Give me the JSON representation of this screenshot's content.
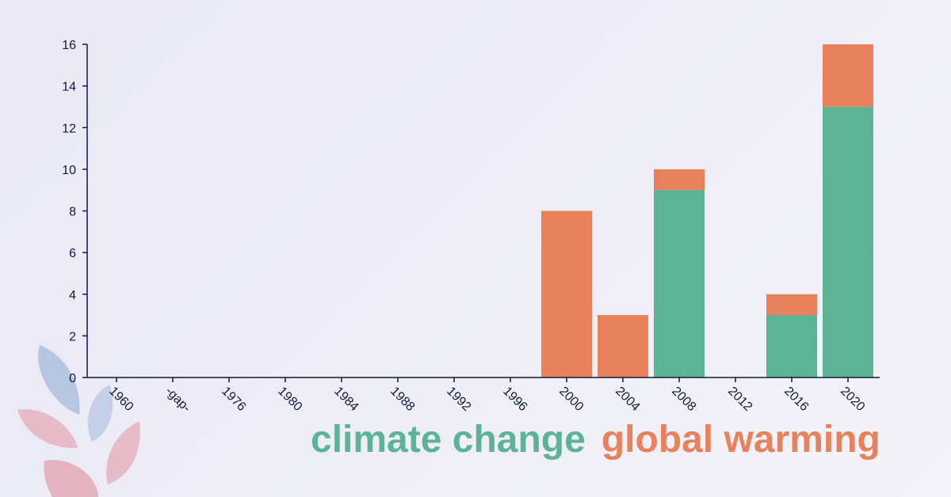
{
  "chart_data": {
    "type": "bar",
    "stacked": true,
    "categories": [
      "1960",
      "-gap-",
      "1976",
      "1980",
      "1984",
      "1988",
      "1992",
      "1996",
      "2000",
      "2004",
      "2008",
      "2012",
      "2016",
      "2020"
    ],
    "series": [
      {
        "name": "climate change",
        "color": "#5db396",
        "values": [
          0,
          0,
          0,
          0,
          0,
          0,
          0,
          0,
          0,
          0,
          9,
          0,
          3,
          13
        ]
      },
      {
        "name": "global warming",
        "color": "#e8825c",
        "values": [
          0,
          0,
          0,
          0,
          0,
          0,
          0,
          0,
          8,
          3,
          1,
          0,
          1,
          3
        ]
      }
    ],
    "y_ticks": [
      0,
      2,
      4,
      6,
      8,
      10,
      12,
      14,
      16
    ],
    "ylim": [
      0,
      16
    ],
    "grid": false,
    "axis_color": "#0d1b3e"
  },
  "legend": {
    "items": [
      {
        "label": "climate change",
        "color": "#5db396"
      },
      {
        "label": "global warming",
        "color": "#e8825c"
      }
    ]
  },
  "decoration": {
    "name": "leaves-logo-icon"
  }
}
